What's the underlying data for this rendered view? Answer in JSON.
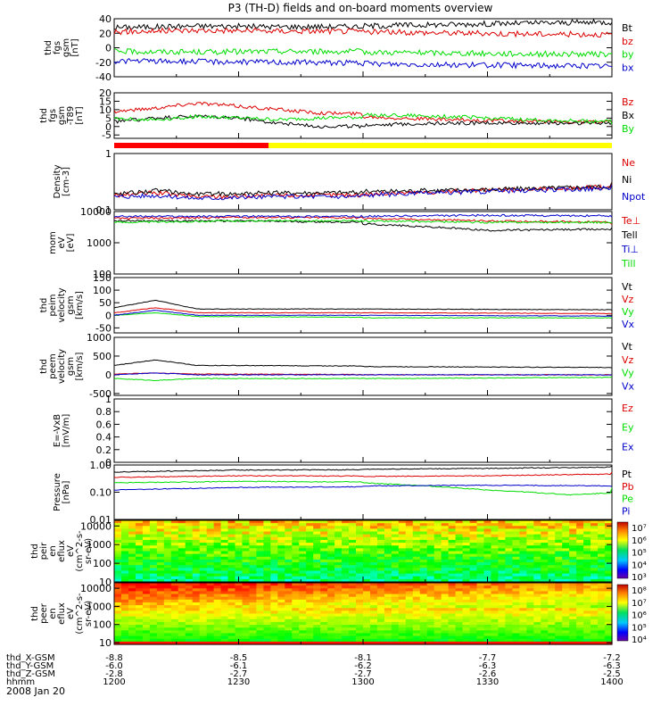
{
  "figure": {
    "title": "P3 (TH-D) fields and on-board moments overview",
    "date": "2008 Jan 20"
  },
  "colors": {
    "black": "#000000",
    "red": "#dd0000",
    "green": "#00dd00",
    "blue": "#0000cc",
    "bar_red": "#ff0000",
    "bar_yellow": "#ffff00"
  },
  "chart_data": [
    {
      "type": "line",
      "ylabel": [
        "thd",
        "fgs",
        "gsm",
        "[nT]"
      ],
      "ylim": [
        -40,
        40
      ],
      "yticks": [
        40,
        20,
        0,
        -20,
        -40
      ],
      "series": [
        {
          "name": "Bt",
          "color": "black",
          "x": [
            1200,
            1220,
            1240,
            1300,
            1320,
            1340,
            1400
          ],
          "y": [
            28,
            30,
            29,
            30,
            32,
            34,
            38
          ]
        },
        {
          "name": "bz",
          "color": "red",
          "x": [
            1200,
            1220,
            1240,
            1300,
            1340,
            1400
          ],
          "y": [
            22,
            24,
            23,
            22,
            19,
            17
          ]
        },
        {
          "name": "by",
          "color": "green",
          "x": [
            1200,
            1220,
            1240,
            1300,
            1330,
            1400
          ],
          "y": [
            -5,
            -6,
            -5,
            -6,
            -8,
            -11
          ]
        },
        {
          "name": "bx",
          "color": "blue",
          "x": [
            1200,
            1220,
            1240,
            1300,
            1330,
            1400
          ],
          "y": [
            -18,
            -19,
            -20,
            -22,
            -24,
            -27
          ]
        }
      ]
    },
    {
      "type": "line",
      "ylabel": [
        "thd",
        "fgs",
        "gsm",
        "-T89",
        "[nT]"
      ],
      "ylim": [
        -7,
        20
      ],
      "yticks": [
        20,
        15,
        10,
        5,
        0,
        -5
      ],
      "series": [
        {
          "name": "Bz",
          "color": "red",
          "x": [
            1200,
            1210,
            1220,
            1230,
            1240,
            1250,
            1300,
            1320,
            1340,
            1400
          ],
          "y": [
            9,
            11,
            14,
            12,
            10,
            8,
            6,
            4,
            3,
            2
          ]
        },
        {
          "name": "Bx",
          "color": "black",
          "x": [
            1200,
            1210,
            1220,
            1230,
            1240,
            1250,
            1300,
            1320,
            1340,
            1400
          ],
          "y": [
            3,
            5,
            6,
            5,
            2,
            0,
            1,
            2,
            2,
            2
          ]
        },
        {
          "name": "By",
          "color": "green",
          "x": [
            1200,
            1210,
            1220,
            1230,
            1240,
            1250,
            1300,
            1320,
            1340,
            1400
          ],
          "y": [
            5,
            4,
            6,
            5,
            4,
            5,
            7,
            6,
            4,
            1
          ]
        }
      ]
    },
    {
      "type": "line",
      "ylabel": [
        "Density",
        "[cm-3]"
      ],
      "ylim": [
        0.1,
        1.0
      ],
      "yscale": "log",
      "yticks": [
        1.0,
        0.1
      ],
      "series": [
        {
          "name": "Ne",
          "color": "red",
          "x": [
            1200,
            1210,
            1220,
            1240,
            1300,
            1330,
            1400
          ],
          "y": [
            0.18,
            0.2,
            0.17,
            0.18,
            0.19,
            0.22,
            0.3
          ]
        },
        {
          "name": "Ni",
          "color": "black",
          "x": [
            1200,
            1210,
            1220,
            1240,
            1300,
            1330,
            1400
          ],
          "y": [
            0.19,
            0.22,
            0.19,
            0.2,
            0.21,
            0.23,
            0.3
          ]
        },
        {
          "name": "Npot",
          "color": "blue",
          "x": [
            1200,
            1210,
            1220,
            1240,
            1300,
            1330,
            1400
          ],
          "y": [
            0.17,
            0.18,
            0.16,
            0.17,
            0.18,
            0.21,
            0.28
          ]
        }
      ]
    },
    {
      "type": "line",
      "ylabel": [
        "mom",
        "eV",
        "[eV]"
      ],
      "ylim": [
        100,
        10000
      ],
      "yscale": "log",
      "yticks": [
        10000,
        1000,
        100
      ],
      "series": [
        {
          "name": "Te⊥",
          "color": "red",
          "x": [
            1200,
            1230,
            1300,
            1330,
            1400
          ],
          "y": [
            6000,
            6500,
            6000,
            5000,
            4000
          ]
        },
        {
          "name": "Tell",
          "color": "black",
          "x": [
            1200,
            1230,
            1300,
            1330,
            1400
          ],
          "y": [
            5000,
            5000,
            4000,
            2500,
            3000
          ]
        },
        {
          "name": "Ti⊥",
          "color": "blue",
          "x": [
            1200,
            1230,
            1300,
            1330,
            1400
          ],
          "y": [
            7000,
            7000,
            7000,
            7500,
            7000
          ]
        },
        {
          "name": "Till",
          "color": "green",
          "x": [
            1200,
            1230,
            1300,
            1330,
            1400
          ],
          "y": [
            4500,
            5000,
            5000,
            4500,
            4500
          ]
        }
      ]
    },
    {
      "type": "line",
      "ylabel": [
        "thd",
        "peim",
        "velocity",
        "gsm",
        "[km/s]"
      ],
      "ylim": [
        -70,
        150
      ],
      "yticks": [
        150,
        100,
        50,
        0,
        -50
      ],
      "series": [
        {
          "name": "Vt",
          "color": "black",
          "x": [
            1200,
            1210,
            1220,
            1300,
            1400
          ],
          "y": [
            30,
            60,
            25,
            25,
            20
          ]
        },
        {
          "name": "Vz",
          "color": "red",
          "x": [
            1200,
            1210,
            1220,
            1300,
            1400
          ],
          "y": [
            10,
            30,
            10,
            10,
            5
          ]
        },
        {
          "name": "Vy",
          "color": "green",
          "x": [
            1200,
            1210,
            1220,
            1300,
            1400
          ],
          "y": [
            0,
            10,
            -5,
            -10,
            -10
          ]
        },
        {
          "name": "Vx",
          "color": "blue",
          "x": [
            1200,
            1210,
            1220,
            1300,
            1400
          ],
          "y": [
            0,
            20,
            0,
            0,
            -5
          ]
        }
      ]
    },
    {
      "type": "line",
      "ylabel": [
        "thd",
        "peem",
        "velocity",
        "gsm",
        "[km/s]"
      ],
      "ylim": [
        -550,
        1000
      ],
      "yticks": [
        1000,
        500,
        0,
        -500
      ],
      "series": [
        {
          "name": "Vt",
          "color": "black",
          "x": [
            1200,
            1210,
            1220,
            1300,
            1400
          ],
          "y": [
            250,
            400,
            250,
            220,
            180
          ]
        },
        {
          "name": "Vz",
          "color": "red",
          "x": [
            1200,
            1210,
            1220,
            1300,
            1400
          ],
          "y": [
            20,
            50,
            20,
            0,
            0
          ]
        },
        {
          "name": "Vy",
          "color": "green",
          "x": [
            1200,
            1210,
            1220,
            1300,
            1400
          ],
          "y": [
            -100,
            -150,
            -100,
            -100,
            -50
          ]
        },
        {
          "name": "Vx",
          "color": "blue",
          "x": [
            1200,
            1210,
            1220,
            1300,
            1400
          ],
          "y": [
            0,
            50,
            0,
            0,
            0
          ]
        }
      ]
    },
    {
      "type": "line",
      "ylabel": [
        "E=-VxB",
        "[mV/m]"
      ],
      "ylim": [
        0,
        1.0
      ],
      "yticks": [
        1.0,
        0.8,
        0.6,
        0.4,
        0.2,
        0.0
      ],
      "series": [
        {
          "name": "Ez",
          "color": "red",
          "x": [],
          "y": []
        },
        {
          "name": "Ey",
          "color": "green",
          "x": [],
          "y": []
        },
        {
          "name": "Ex",
          "color": "blue",
          "x": [],
          "y": []
        }
      ]
    },
    {
      "type": "line",
      "ylabel": [
        "Pressure",
        "[nPa]"
      ],
      "ylim": [
        0.01,
        1.0
      ],
      "yscale": "log",
      "yticks": [
        1.0,
        0.1,
        0.01
      ],
      "ytick_labels": [
        "1.00",
        "0.10",
        "0.01"
      ],
      "series": [
        {
          "name": "Pt",
          "color": "black",
          "x": [
            1200,
            1230,
            1300,
            1330,
            1400
          ],
          "y": [
            0.55,
            0.65,
            0.7,
            0.75,
            0.95
          ]
        },
        {
          "name": "Pb",
          "color": "red",
          "x": [
            1200,
            1230,
            1300,
            1330,
            1400
          ],
          "y": [
            0.35,
            0.4,
            0.38,
            0.4,
            0.55
          ]
        },
        {
          "name": "Pe",
          "color": "green",
          "x": [
            1200,
            1230,
            1300,
            1330,
            1350,
            1400
          ],
          "y": [
            0.22,
            0.25,
            0.22,
            0.12,
            0.08,
            0.15
          ]
        },
        {
          "name": "Pi",
          "color": "blue",
          "x": [
            1200,
            1230,
            1300,
            1330,
            1400
          ],
          "y": [
            0.12,
            0.15,
            0.17,
            0.18,
            0.16
          ]
        }
      ]
    },
    {
      "type": "heatmap",
      "ylabel": [
        "thd",
        "peir",
        "en",
        "eflux",
        "eV",
        "(cm^2-s-",
        "sr-eV)"
      ],
      "yscale": "log",
      "ylim": [
        10,
        20000
      ],
      "yticks": [
        10000,
        1000,
        100,
        10
      ],
      "colorbar_ticks": [
        "10⁷",
        "10⁶",
        "10⁵",
        "10⁴",
        "10³"
      ]
    },
    {
      "type": "heatmap",
      "ylabel": [
        "thd",
        "peer",
        "en",
        "eflux",
        "eV",
        "(cm^2-s-",
        "sr-eV)"
      ],
      "yscale": "log",
      "ylim": [
        8,
        20000
      ],
      "yticks": [
        10000,
        1000,
        100,
        10
      ],
      "colorbar_ticks": [
        "10⁸",
        "10⁷",
        "10⁶",
        "10⁵",
        "10⁴"
      ]
    }
  ],
  "xaxis": {
    "row_labels": [
      "thd_X-GSM",
      "thd_Y-GSM",
      "thd_Z-GSM",
      "hhmm"
    ],
    "ticks": [
      {
        "x": 1200,
        "values": [
          "-8.8",
          "-6.0",
          "-2.8",
          "1200"
        ]
      },
      {
        "x": 1230,
        "values": [
          "-8.5",
          "-6.1",
          "-2.7",
          "1230"
        ]
      },
      {
        "x": 1300,
        "values": [
          "-8.1",
          "-6.2",
          "-2.7",
          "1300"
        ]
      },
      {
        "x": 1330,
        "values": [
          "-7.7",
          "-6.3",
          "-2.6",
          "1330"
        ]
      },
      {
        "x": 1400,
        "values": [
          "-7.2",
          "-6.3",
          "-2.5",
          "1400"
        ]
      }
    ]
  }
}
